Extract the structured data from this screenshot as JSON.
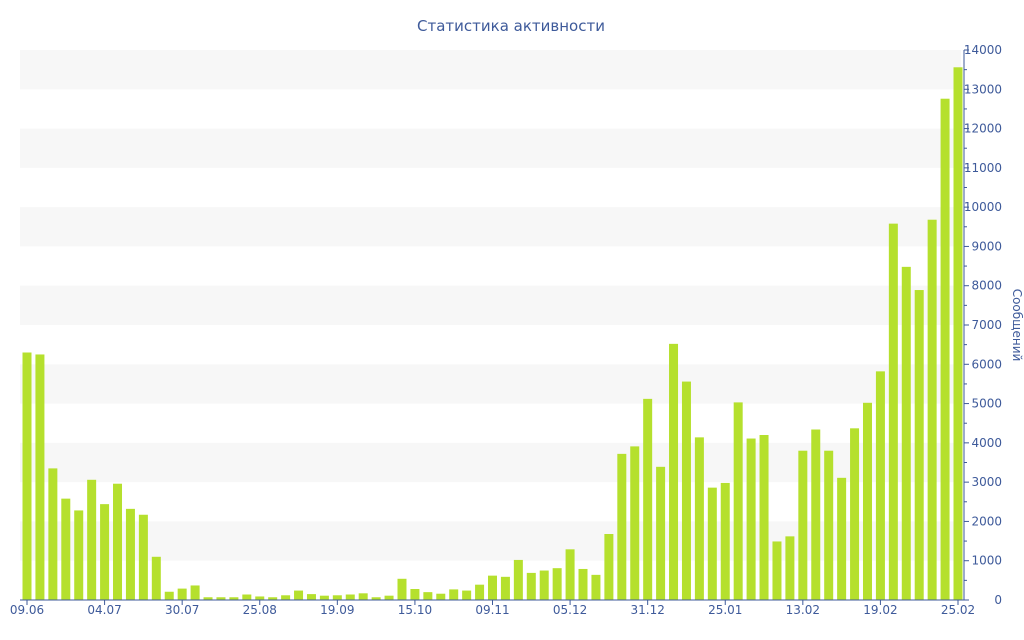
{
  "chart_data": {
    "type": "bar",
    "title": "Статистика активности",
    "xlabel": "",
    "ylabel": "Сообщений",
    "ylim": [
      0,
      14000
    ],
    "y_ticks": [
      0,
      1000,
      2000,
      3000,
      4000,
      5000,
      6000,
      7000,
      8000,
      9000,
      10000,
      11000,
      12000,
      13000,
      14000
    ],
    "y_axis_side": "right",
    "x_tick_labels": [
      {
        "index": 0,
        "label": "09.06"
      },
      {
        "index": 6,
        "label": "04.07"
      },
      {
        "index": 12,
        "label": "30.07"
      },
      {
        "index": 18,
        "label": "25.08"
      },
      {
        "index": 24,
        "label": "19.09"
      },
      {
        "index": 30,
        "label": "15.10"
      },
      {
        "index": 36,
        "label": "09.11"
      },
      {
        "index": 42,
        "label": "05.12"
      },
      {
        "index": 48,
        "label": "31.12"
      },
      {
        "index": 54,
        "label": "25.01"
      },
      {
        "index": 60,
        "label": "13.02"
      },
      {
        "index": 66,
        "label": "19.02"
      },
      {
        "index": 72,
        "label": "25.02"
      }
    ],
    "values": [
      6300,
      6250,
      3350,
      2580,
      2280,
      3060,
      2440,
      2960,
      2320,
      2170,
      1100,
      210,
      290,
      370,
      70,
      70,
      70,
      140,
      90,
      70,
      120,
      240,
      150,
      110,
      120,
      140,
      170,
      70,
      110,
      540,
      280,
      200,
      160,
      270,
      240,
      390,
      620,
      590,
      1020,
      690,
      750,
      810,
      1290,
      790,
      640,
      1680,
      3720,
      3910,
      5120,
      3390,
      6520,
      5560,
      4140,
      2860,
      2980,
      5030,
      4110,
      4200,
      1490,
      1620,
      3800,
      4340,
      3800,
      3110,
      4370,
      5020,
      5820,
      9580,
      8480,
      7890,
      9680,
      12760,
      13560
    ],
    "grid": true,
    "grid_style": "alternating horizontal bands",
    "legend": "none",
    "colors": {
      "bar": "#b5e02d",
      "band": "#f7f7f7",
      "text": "#3e5a9a",
      "axis": "#3e5a9a"
    }
  }
}
